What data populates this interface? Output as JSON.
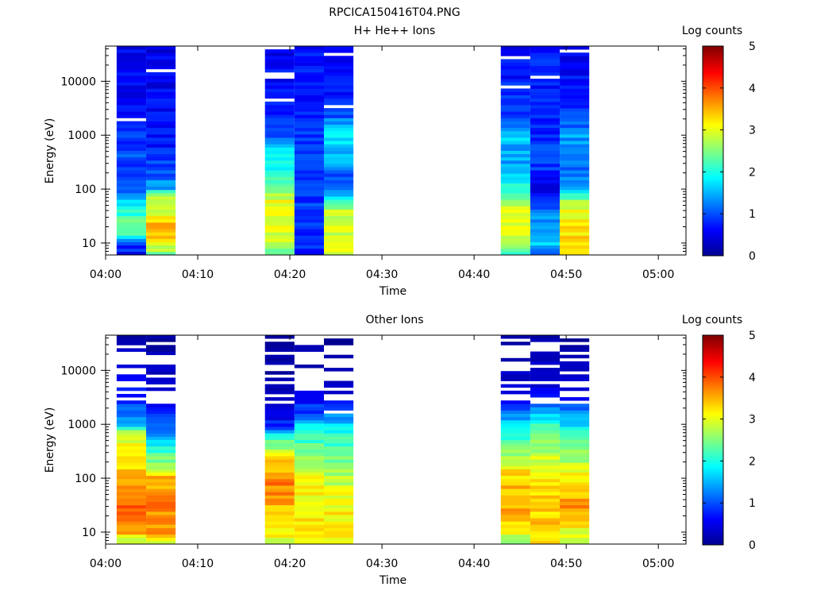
{
  "figure_title": "RPCICA150416T04.PNG",
  "colormap": [
    "#00008f",
    "#0000ff",
    "#0080ff",
    "#00ffff",
    "#80ff80",
    "#ffff00",
    "#ff8000",
    "#ff0000",
    "#800000"
  ],
  "chart_data": [
    {
      "type": "heatmap",
      "title": "H+ He++ Ions",
      "xlabel": "Time",
      "ylabel": "Energy (eV)",
      "x_range_minutes_after_0400": [
        0,
        63
      ],
      "x_ticks": [
        "04:00",
        "04:10",
        "04:20",
        "04:30",
        "04:40",
        "04:50",
        "05:00"
      ],
      "y_scale": "log",
      "y_range": [
        6,
        45000
      ],
      "y_ticks": [
        "10",
        "100",
        "1000",
        "10000"
      ],
      "colorbar": {
        "label": "Log counts",
        "range": [
          0,
          5
        ],
        "ticks": [
          "0",
          "1",
          "2",
          "3",
          "4",
          "5"
        ]
      },
      "columns": [
        {
          "t_start": "04:01.2",
          "t_end": "04:04.4",
          "profile": [
            [
              6,
              0.6
            ],
            [
              10,
              1.0
            ],
            [
              16,
              2.5
            ],
            [
              30,
              2.2
            ],
            [
              60,
              1.6
            ],
            [
              100,
              1.0
            ],
            [
              300,
              1.0
            ],
            [
              1000,
              0.8
            ],
            [
              5000,
              0.6
            ],
            [
              45000,
              0.6
            ]
          ]
        },
        {
          "t_start": "04:04.4",
          "t_end": "04:07.6",
          "profile": [
            [
              6,
              2.3
            ],
            [
              10,
              3.2
            ],
            [
              20,
              3.5
            ],
            [
              40,
              3.0
            ],
            [
              80,
              2.6
            ],
            [
              100,
              1.4
            ],
            [
              300,
              0.9
            ],
            [
              1000,
              0.7
            ],
            [
              5000,
              0.6
            ],
            [
              45000,
              0.5
            ]
          ]
        },
        {
          "t_start": "04:17.3",
          "t_end": "04:20.5",
          "profile": [
            [
              6,
              2.3
            ],
            [
              10,
              2.8
            ],
            [
              30,
              3.0
            ],
            [
              60,
              3.0
            ],
            [
              100,
              2.4
            ],
            [
              300,
              1.9
            ],
            [
              600,
              1.7
            ],
            [
              1000,
              1.0
            ],
            [
              5000,
              0.7
            ],
            [
              45000,
              0.6
            ]
          ]
        },
        {
          "t_start": "04:20.5",
          "t_end": "04:23.7",
          "profile": [
            [
              6,
              0.7
            ],
            [
              10,
              0.8
            ],
            [
              30,
              0.8
            ],
            [
              60,
              0.9
            ],
            [
              100,
              0.8
            ],
            [
              300,
              0.9
            ],
            [
              1000,
              0.8
            ],
            [
              5000,
              0.7
            ],
            [
              45000,
              0.7
            ]
          ]
        },
        {
          "t_start": "04:23.7",
          "t_end": "04:26.9",
          "profile": [
            [
              6,
              3.0
            ],
            [
              10,
              3.0
            ],
            [
              40,
              2.8
            ],
            [
              80,
              1.4
            ],
            [
              150,
              1.0
            ],
            [
              400,
              1.5
            ],
            [
              1000,
              1.9
            ],
            [
              3000,
              0.8
            ],
            [
              45000,
              0.6
            ]
          ]
        },
        {
          "t_start": "04:42.9",
          "t_end": "04:46.1",
          "profile": [
            [
              6,
              1.9
            ],
            [
              10,
              2.9
            ],
            [
              40,
              2.9
            ],
            [
              80,
              2.4
            ],
            [
              150,
              1.7
            ],
            [
              400,
              1.4
            ],
            [
              1000,
              1.6
            ],
            [
              3000,
              0.9
            ],
            [
              45000,
              0.6
            ]
          ]
        },
        {
          "t_start": "04:46.1",
          "t_end": "04:49.3",
          "profile": [
            [
              6,
              0.9
            ],
            [
              10,
              1.6
            ],
            [
              30,
              1.3
            ],
            [
              60,
              0.9
            ],
            [
              100,
              0.6
            ],
            [
              300,
              0.9
            ],
            [
              1000,
              0.8
            ],
            [
              5000,
              0.8
            ],
            [
              45000,
              0.7
            ]
          ]
        },
        {
          "t_start": "04:49.3",
          "t_end": "04:52.5",
          "profile": [
            [
              6,
              3.0
            ],
            [
              10,
              3.3
            ],
            [
              30,
              3.1
            ],
            [
              60,
              2.8
            ],
            [
              100,
              1.3
            ],
            [
              300,
              1.2
            ],
            [
              1000,
              1.4
            ],
            [
              3000,
              0.8
            ],
            [
              45000,
              0.5
            ]
          ]
        }
      ]
    },
    {
      "type": "heatmap",
      "title": "Other Ions",
      "xlabel": "Time",
      "ylabel": "Energy (eV)",
      "x_range_minutes_after_0400": [
        0,
        63
      ],
      "x_ticks": [
        "04:00",
        "04:10",
        "04:20",
        "04:30",
        "04:40",
        "04:50",
        "05:00"
      ],
      "y_scale": "log",
      "y_range": [
        6,
        45000
      ],
      "y_ticks": [
        "10",
        "100",
        "1000",
        "10000"
      ],
      "colorbar": {
        "label": "Log counts",
        "range": [
          0,
          5
        ],
        "ticks": [
          "0",
          "1",
          "2",
          "3",
          "4",
          "5"
        ]
      },
      "columns": [
        {
          "t_start": "04:01.2",
          "t_end": "04:04.4",
          "profile": [
            [
              6,
              2.5
            ],
            [
              10,
              3.6
            ],
            [
              20,
              4.0
            ],
            [
              50,
              3.8
            ],
            [
              100,
              3.5
            ],
            [
              300,
              3.2
            ],
            [
              700,
              2.8
            ],
            [
              1000,
              1.4
            ],
            [
              2000,
              1.0
            ],
            [
              45000,
              0.3
            ]
          ]
        },
        {
          "t_start": "04:04.4",
          "t_end": "04:07.6",
          "profile": [
            [
              6,
              2.7
            ],
            [
              10,
              3.6
            ],
            [
              30,
              3.7
            ],
            [
              100,
              3.5
            ],
            [
              200,
              2.6
            ],
            [
              500,
              1.7
            ],
            [
              1000,
              1.0
            ],
            [
              3000,
              0.6
            ],
            [
              45000,
              0.2
            ]
          ]
        },
        {
          "t_start": "04:17.3",
          "t_end": "04:20.5",
          "profile": [
            [
              6,
              2.9
            ],
            [
              10,
              3.1
            ],
            [
              30,
              3.5
            ],
            [
              100,
              3.8
            ],
            [
              300,
              3.0
            ],
            [
              600,
              2.0
            ],
            [
              1000,
              0.7
            ],
            [
              5000,
              0.3
            ],
            [
              45000,
              0.2
            ]
          ]
        },
        {
          "t_start": "04:20.5",
          "t_end": "04:23.7",
          "profile": [
            [
              6,
              3.1
            ],
            [
              10,
              3.2
            ],
            [
              30,
              3.2
            ],
            [
              100,
              3.1
            ],
            [
              300,
              2.5
            ],
            [
              800,
              2.0
            ],
            [
              1500,
              1.0
            ],
            [
              5000,
              0.5
            ],
            [
              45000,
              0.2
            ]
          ]
        },
        {
          "t_start": "04:23.7",
          "t_end": "04:26.9",
          "profile": [
            [
              6,
              3.1
            ],
            [
              10,
              3.2
            ],
            [
              30,
              3.1
            ],
            [
              100,
              2.8
            ],
            [
              300,
              2.4
            ],
            [
              800,
              2.0
            ],
            [
              1500,
              1.2
            ],
            [
              5000,
              0.4
            ],
            [
              45000,
              0.2
            ]
          ]
        },
        {
          "t_start": "04:42.9",
          "t_end": "04:46.1",
          "profile": [
            [
              6,
              2.5
            ],
            [
              10,
              3.0
            ],
            [
              20,
              3.6
            ],
            [
              60,
              3.5
            ],
            [
              150,
              3.2
            ],
            [
              400,
              2.4
            ],
            [
              1000,
              1.8
            ],
            [
              3000,
              0.6
            ],
            [
              45000,
              0.2
            ]
          ]
        },
        {
          "t_start": "04:46.1",
          "t_end": "04:49.3",
          "profile": [
            [
              6,
              3.2
            ],
            [
              10,
              3.4
            ],
            [
              30,
              3.3
            ],
            [
              100,
              3.2
            ],
            [
              300,
              2.8
            ],
            [
              1000,
              2.2
            ],
            [
              2000,
              1.3
            ],
            [
              5000,
              0.6
            ],
            [
              45000,
              0.3
            ]
          ]
        },
        {
          "t_start": "04:49.3",
          "t_end": "04:52.5",
          "profile": [
            [
              6,
              2.6
            ],
            [
              10,
              3.0
            ],
            [
              30,
              3.6
            ],
            [
              100,
              3.2
            ],
            [
              300,
              2.5
            ],
            [
              800,
              2.0
            ],
            [
              2000,
              1.0
            ],
            [
              5000,
              0.5
            ],
            [
              45000,
              0.2
            ]
          ]
        }
      ]
    }
  ]
}
